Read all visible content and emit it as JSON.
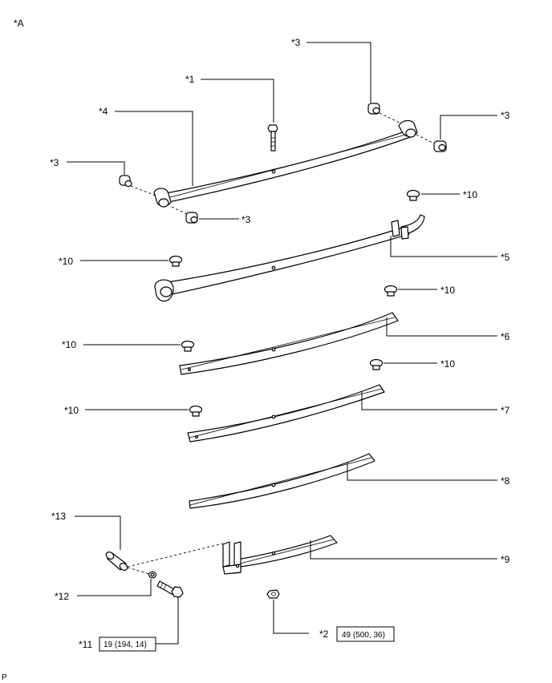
{
  "corner_label": "*A",
  "footer_label": "P",
  "callouts": {
    "c1": "*1",
    "c2": "*2",
    "c3": "*3",
    "c4": "*4",
    "c5": "*5",
    "c6": "*6",
    "c7": "*7",
    "c8": "*8",
    "c9": "*9",
    "c10": "*10",
    "c11": "*11",
    "c12": "*12",
    "c13": "*13"
  },
  "torque": {
    "t11": "19 (194, 14)",
    "t2": "49 (500, 36)"
  }
}
